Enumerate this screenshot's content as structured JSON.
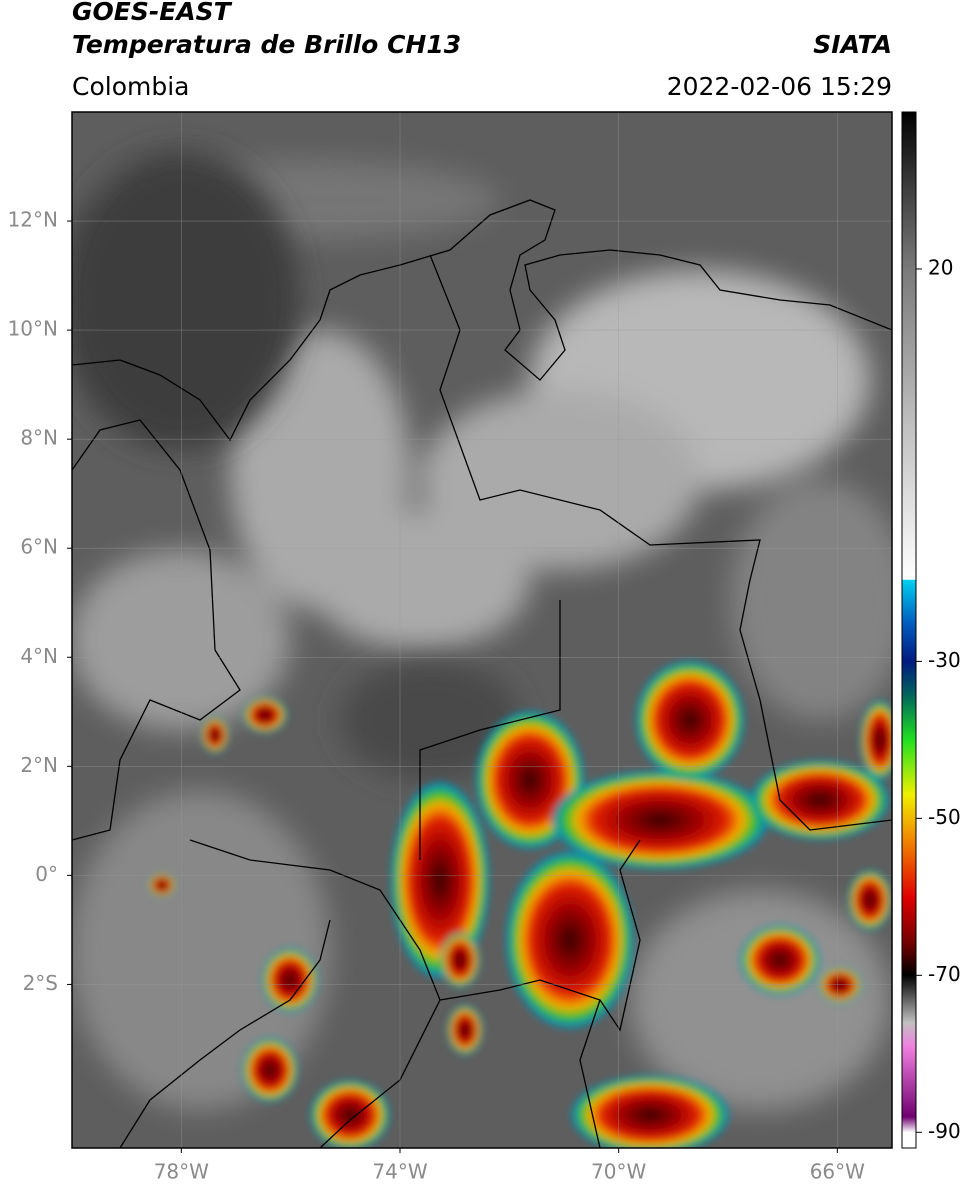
{
  "header": {
    "title": "GOES-EAST",
    "subtitle": "Temperatura de Brillo CH13",
    "source": "SIATA",
    "region": "Colombia",
    "timestamp": "2022-02-06 15:29"
  },
  "map": {
    "xlim": [
      -80,
      -65
    ],
    "ylim": [
      -5,
      14
    ],
    "xticks": [
      {
        "value": -78,
        "label": "78°W"
      },
      {
        "value": -74,
        "label": "74°W"
      },
      {
        "value": -70,
        "label": "70°W"
      },
      {
        "value": -66,
        "label": "66°W"
      }
    ],
    "yticks": [
      {
        "value": 12,
        "label": "12°N"
      },
      {
        "value": 10,
        "label": "10°N"
      },
      {
        "value": 8,
        "label": "8°N"
      },
      {
        "value": 6,
        "label": "6°N"
      },
      {
        "value": 4,
        "label": "4°N"
      },
      {
        "value": 2,
        "label": "2°N"
      },
      {
        "value": 0,
        "label": "0°"
      },
      {
        "value": -2,
        "label": "2°S"
      }
    ],
    "grid": true
  },
  "colorbar": {
    "lim": [
      -92,
      40
    ],
    "ticks": [
      20,
      -30,
      -50,
      -70,
      -90
    ]
  }
}
